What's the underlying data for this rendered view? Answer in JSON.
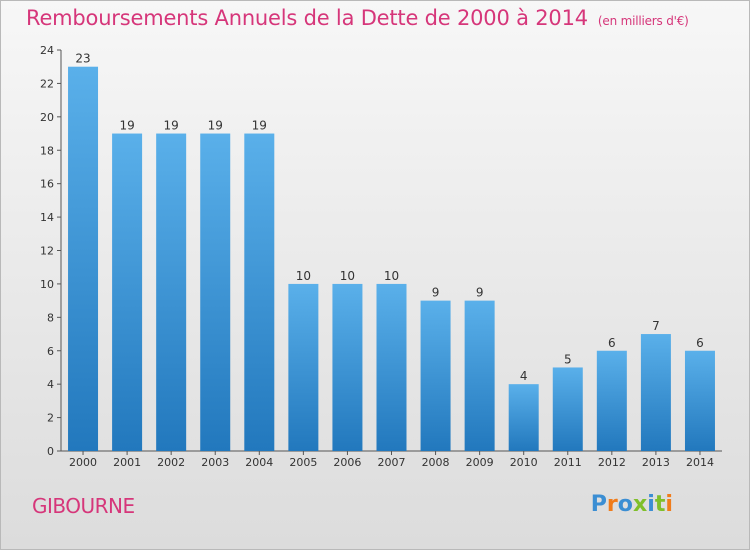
{
  "header": {
    "title": "Remboursements Annuels de la Dette de 2000 à 2014",
    "unit": "(en milliers d'€)"
  },
  "place_name": "GIBOURNE",
  "logo_text": "Proxiti",
  "colors": {
    "title": "#d6367a",
    "bar_top": "#5ab0ea",
    "bar_bottom": "#2278bd"
  },
  "chart_data": {
    "type": "bar",
    "title": "Remboursements Annuels de la Dette de 2000 à 2014",
    "ylabel": "",
    "xlabel": "",
    "categories": [
      "2000",
      "2001",
      "2002",
      "2003",
      "2004",
      "2005",
      "2006",
      "2007",
      "2008",
      "2009",
      "2010",
      "2011",
      "2012",
      "2013",
      "2014"
    ],
    "values": [
      23,
      19,
      19,
      19,
      19,
      10,
      10,
      10,
      9,
      9,
      4,
      5,
      6,
      7,
      6
    ],
    "ylim": [
      0,
      24
    ],
    "yticks": [
      0,
      2,
      4,
      6,
      8,
      10,
      12,
      14,
      16,
      18,
      20,
      22,
      24
    ],
    "grid": false,
    "data_labels": true
  }
}
